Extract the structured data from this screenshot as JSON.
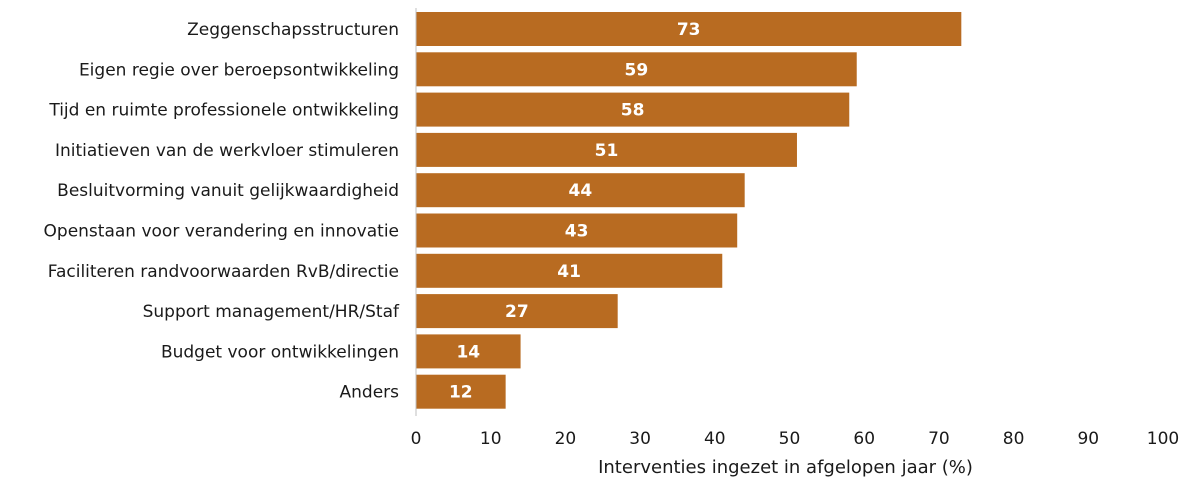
{
  "chart_data": {
    "type": "bar",
    "orientation": "horizontal",
    "categories": [
      "Zeggenschapsstructuren",
      "Eigen regie over beroepsontwikkeling",
      "Tijd en ruimte professionele ontwikkeling",
      "Initiatieven van de werkvloer stimuleren",
      "Besluitvorming vanuit gelijkwaardigheid",
      "Openstaan voor verandering en innovatie",
      "Faciliteren randvoorwaarden RvB/directie",
      "Support management/HR/Staf",
      "Budget voor ontwikkelingen",
      "Anders"
    ],
    "values": [
      73,
      59,
      58,
      51,
      44,
      43,
      41,
      27,
      14,
      12
    ],
    "title": "",
    "xlabel": "Interventies ingezet in afgelopen jaar (%)",
    "ylabel": "",
    "xlim": [
      0,
      100
    ],
    "xticks": [
      "0",
      "10",
      "20",
      "30",
      "40",
      "50",
      "60",
      "70",
      "80",
      "90",
      "100"
    ],
    "bar_color": "#b86b21",
    "value_label_color": "#ffffff",
    "grid": false,
    "legend": "none"
  }
}
